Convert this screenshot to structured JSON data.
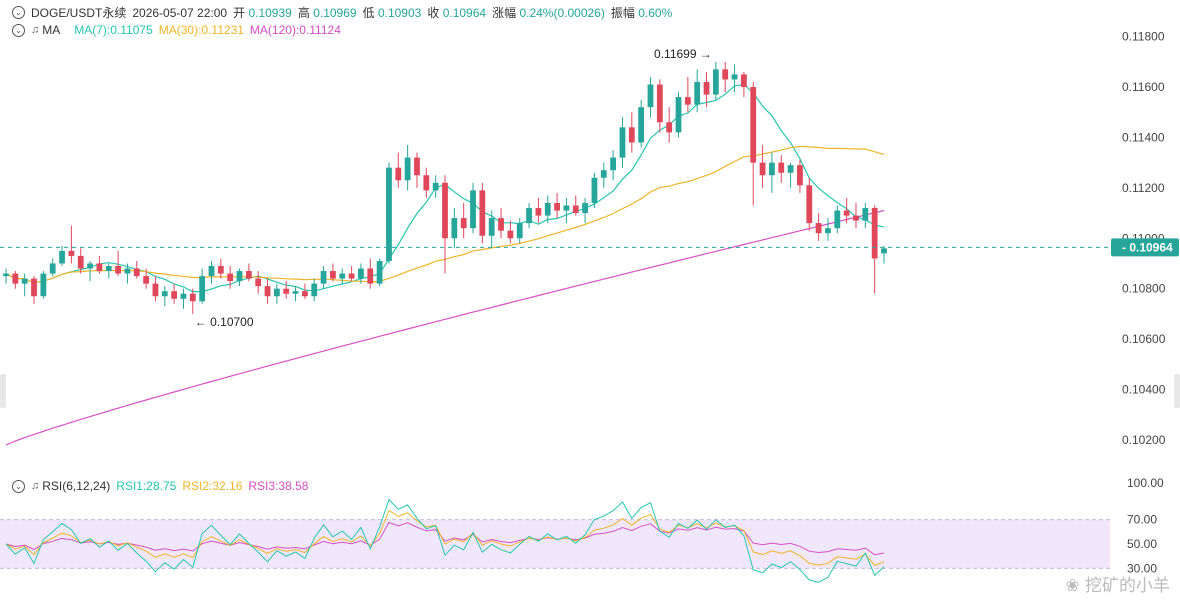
{
  "header": {
    "symbol": "DOGE/USDT永续",
    "datetime": "2026-05-07 22:00",
    "open_label": "开",
    "open": "0.10939",
    "high_label": "高",
    "high": "0.10969",
    "low_label": "低",
    "low": "0.10903",
    "close_label": "收",
    "close": "0.10964",
    "change_label": "涨幅",
    "change": "0.24%(0.00026)",
    "amp_label": "振幅",
    "amp": "0.60%"
  },
  "ma_legend": {
    "label": "MA",
    "ma7": "MA(7):0.11075",
    "ma30": "MA(30):0.11231",
    "ma120": "MA(120):0.11124"
  },
  "rsi_legend": {
    "label": "RSI(6,12,24)",
    "rsi1": "RSI1:28.75",
    "rsi2": "RSI2:32.16",
    "rsi3": "RSI3:38.58"
  },
  "price_axis": [
    "0.11800",
    "0.11600",
    "0.11400",
    "0.11200",
    "0.11000",
    "0.10800",
    "0.10600",
    "0.10400",
    "0.10200"
  ],
  "current_price": "0.10964",
  "rsi_axis": [
    "100.00",
    "70.00",
    "50.00",
    "30.00"
  ],
  "annotations": {
    "high": "0.11699",
    "low": "0.10700"
  },
  "watermark": "挖矿的小羊",
  "colors": {
    "up": "#26a69a",
    "down": "#e0475a",
    "ma7": "#26c6b0",
    "ma30": "#f0b429",
    "ma120": "#d64fc4",
    "rsi1": "#26c6b0",
    "rsi2": "#f0b429",
    "rsi3": "#d64fc4"
  },
  "chart_data": {
    "type": "candlestick",
    "price_range": [
      0.1016,
      0.1185
    ],
    "rsi_range": [
      0,
      100
    ],
    "candles": [
      [
        0.1085,
        0.1088,
        0.1082,
        0.1086
      ],
      [
        0.1086,
        0.1087,
        0.108,
        0.1082
      ],
      [
        0.1082,
        0.1086,
        0.1077,
        0.1084
      ],
      [
        0.1084,
        0.1085,
        0.1074,
        0.1077
      ],
      [
        0.1077,
        0.1087,
        0.1076,
        0.1086
      ],
      [
        0.1086,
        0.1092,
        0.1085,
        0.109
      ],
      [
        0.109,
        0.1097,
        0.1089,
        0.1095
      ],
      [
        0.1095,
        0.1105,
        0.109,
        0.1093
      ],
      [
        0.1093,
        0.1096,
        0.1086,
        0.1088
      ],
      [
        0.1088,
        0.1091,
        0.1083,
        0.109
      ],
      [
        0.109,
        0.1093,
        0.1086,
        0.1087
      ],
      [
        0.1087,
        0.109,
        0.1084,
        0.1089
      ],
      [
        0.1089,
        0.1095,
        0.1085,
        0.1086
      ],
      [
        0.1086,
        0.109,
        0.1082,
        0.1088
      ],
      [
        0.1088,
        0.1091,
        0.1084,
        0.1085
      ],
      [
        0.1085,
        0.1088,
        0.108,
        0.1082
      ],
      [
        0.1082,
        0.1085,
        0.1075,
        0.1077
      ],
      [
        0.1077,
        0.1081,
        0.1073,
        0.1079
      ],
      [
        0.1079,
        0.1082,
        0.1074,
        0.1076
      ],
      [
        0.1076,
        0.108,
        0.1072,
        0.1078
      ],
      [
        0.1078,
        0.108,
        0.107,
        0.1075
      ],
      [
        0.1075,
        0.1088,
        0.1074,
        0.1085
      ],
      [
        0.1085,
        0.1091,
        0.1082,
        0.1089
      ],
      [
        0.1089,
        0.1092,
        0.1084,
        0.1086
      ],
      [
        0.1086,
        0.1089,
        0.108,
        0.1083
      ],
      [
        0.1083,
        0.1088,
        0.1081,
        0.1087
      ],
      [
        0.1087,
        0.109,
        0.1083,
        0.1084
      ],
      [
        0.1084,
        0.1087,
        0.1078,
        0.1081
      ],
      [
        0.1081,
        0.1084,
        0.1074,
        0.1077
      ],
      [
        0.1077,
        0.1082,
        0.1074,
        0.108
      ],
      [
        0.108,
        0.1083,
        0.1076,
        0.1078
      ],
      [
        0.1078,
        0.1081,
        0.1075,
        0.1079
      ],
      [
        0.1079,
        0.1082,
        0.1076,
        0.1077
      ],
      [
        0.1077,
        0.1084,
        0.1075,
        0.1082
      ],
      [
        0.1082,
        0.1089,
        0.108,
        0.1087
      ],
      [
        0.1087,
        0.109,
        0.1083,
        0.1084
      ],
      [
        0.1084,
        0.1088,
        0.1082,
        0.1086
      ],
      [
        0.1086,
        0.1089,
        0.1083,
        0.1084
      ],
      [
        0.1084,
        0.109,
        0.1082,
        0.1088
      ],
      [
        0.1088,
        0.1092,
        0.108,
        0.1082
      ],
      [
        0.1082,
        0.1092,
        0.1081,
        0.1091
      ],
      [
        0.1091,
        0.113,
        0.109,
        0.1128
      ],
      [
        0.1128,
        0.1134,
        0.112,
        0.1123
      ],
      [
        0.1123,
        0.1137,
        0.1119,
        0.1132
      ],
      [
        0.1132,
        0.1134,
        0.112,
        0.1125
      ],
      [
        0.1125,
        0.1128,
        0.1116,
        0.1119
      ],
      [
        0.1119,
        0.1125,
        0.1116,
        0.1122
      ],
      [
        0.1122,
        0.1125,
        0.1086,
        0.11
      ],
      [
        0.11,
        0.1112,
        0.1096,
        0.1108
      ],
      [
        0.1108,
        0.1114,
        0.11,
        0.1104
      ],
      [
        0.1104,
        0.1122,
        0.1102,
        0.1119
      ],
      [
        0.1119,
        0.1122,
        0.1098,
        0.1101
      ],
      [
        0.1101,
        0.1111,
        0.1096,
        0.1108
      ],
      [
        0.1108,
        0.1112,
        0.11,
        0.1103
      ],
      [
        0.1103,
        0.1107,
        0.1098,
        0.11
      ],
      [
        0.11,
        0.1108,
        0.1098,
        0.1106
      ],
      [
        0.1106,
        0.1114,
        0.1104,
        0.1112
      ],
      [
        0.1112,
        0.1116,
        0.1106,
        0.1109
      ],
      [
        0.1109,
        0.1117,
        0.1106,
        0.1114
      ],
      [
        0.1114,
        0.1118,
        0.1108,
        0.1111
      ],
      [
        0.1111,
        0.1116,
        0.1106,
        0.1113
      ],
      [
        0.1113,
        0.1117,
        0.1109,
        0.111
      ],
      [
        0.111,
        0.1116,
        0.1106,
        0.1114
      ],
      [
        0.1114,
        0.1126,
        0.1112,
        0.1124
      ],
      [
        0.1124,
        0.113,
        0.112,
        0.1127
      ],
      [
        0.1127,
        0.1135,
        0.1123,
        0.1132
      ],
      [
        0.1132,
        0.1148,
        0.1128,
        0.1144
      ],
      [
        0.1144,
        0.115,
        0.1134,
        0.1138
      ],
      [
        0.1138,
        0.1155,
        0.1136,
        0.1152
      ],
      [
        0.1152,
        0.1164,
        0.1148,
        0.1161
      ],
      [
        0.1161,
        0.1163,
        0.1142,
        0.1146
      ],
      [
        0.1146,
        0.1152,
        0.1138,
        0.1142
      ],
      [
        0.1142,
        0.1158,
        0.114,
        0.1156
      ],
      [
        0.1156,
        0.1164,
        0.115,
        0.1153
      ],
      [
        0.1153,
        0.1167,
        0.115,
        0.1162
      ],
      [
        0.1162,
        0.1166,
        0.1152,
        0.1157
      ],
      [
        0.1157,
        0.117,
        0.1155,
        0.1167
      ],
      [
        0.1167,
        0.117,
        0.1158,
        0.1163
      ],
      [
        0.1163,
        0.1169,
        0.1158,
        0.1165
      ],
      [
        0.1165,
        0.1166,
        0.1156,
        0.116
      ],
      [
        0.116,
        0.1162,
        0.1113,
        0.113
      ],
      [
        0.113,
        0.1137,
        0.112,
        0.1125
      ],
      [
        0.1125,
        0.1134,
        0.1118,
        0.113
      ],
      [
        0.113,
        0.1133,
        0.1122,
        0.1126
      ],
      [
        0.1126,
        0.113,
        0.112,
        0.1129
      ],
      [
        0.1129,
        0.1131,
        0.1118,
        0.1121
      ],
      [
        0.1121,
        0.1124,
        0.1103,
        0.1106
      ],
      [
        0.1106,
        0.111,
        0.1099,
        0.1102
      ],
      [
        0.1102,
        0.1108,
        0.1099,
        0.1104
      ],
      [
        0.1104,
        0.1113,
        0.1102,
        0.1111
      ],
      [
        0.1111,
        0.1116,
        0.1106,
        0.1109
      ],
      [
        0.1109,
        0.1114,
        0.1104,
        0.1107
      ],
      [
        0.1107,
        0.1114,
        0.1104,
        0.1112
      ],
      [
        0.1112,
        0.1113,
        0.1078,
        0.1092
      ],
      [
        0.1094,
        0.1097,
        0.109,
        0.1096
      ]
    ]
  }
}
